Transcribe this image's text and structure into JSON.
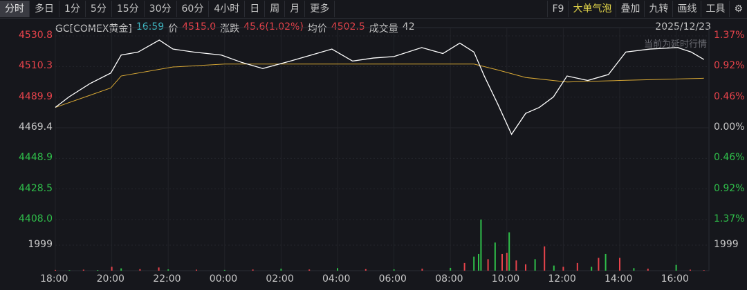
{
  "toolbar": {
    "tabs": [
      "分时",
      "多日",
      "1分",
      "5分",
      "15分",
      "30分",
      "60分",
      "4小时",
      "日",
      "周",
      "月",
      "更多"
    ],
    "active_tab": "分时",
    "tools": [
      "F9",
      "大单气泡",
      "叠加",
      "九转",
      "画线",
      "工具"
    ],
    "settings_icon": "gear-icon"
  },
  "info": {
    "symbol": "GC[COMEX黄金]",
    "time": "16:59",
    "price_label": "价",
    "price": "4515.0",
    "change_label": "涨跌",
    "change": "45.6(1.02%)",
    "avg_label": "均价",
    "avg": "4502.5",
    "volume_label": "成交量",
    "volume": "42",
    "date": "2025/12/23",
    "delay_notice": "当前为延时行情"
  },
  "colors": {
    "up": "#e8434b",
    "down": "#2fbf4a",
    "price_line": "#ffffff",
    "avg_line": "#d9a935",
    "time_text": "#3fb8c4"
  },
  "chart_data": {
    "type": "line",
    "prev_close": 4469.4,
    "ylim": [
      4408.0,
      4530.8
    ],
    "left_ticks": [
      "4530.8",
      "4510.3",
      "4489.9",
      "4469.4",
      "4448.9",
      "4428.5",
      "4408.0"
    ],
    "right_ticks": [
      "1.37%",
      "0.92%",
      "0.46%",
      "0.00%",
      "0.46%",
      "0.92%",
      "1.37%"
    ],
    "x_ticks": [
      "18:00",
      "20:00",
      "22:00",
      "00:00",
      "02:00",
      "04:00",
      "06:00",
      "08:00",
      "10:00",
      "12:00",
      "14:00",
      "16:00"
    ],
    "price": [
      [
        "18:00",
        4483
      ],
      [
        "18:29",
        4490
      ],
      [
        "19:14",
        4499
      ],
      [
        "19:58",
        4506
      ],
      [
        "20:20",
        4518
      ],
      [
        "20:56",
        4520
      ],
      [
        "21:41",
        4528
      ],
      [
        "22:10",
        4522
      ],
      [
        "22:54",
        4520
      ],
      [
        "23:53",
        4518
      ],
      [
        "00:37",
        4513
      ],
      [
        "01:21",
        4509
      ],
      [
        "02:20",
        4514
      ],
      [
        "03:04",
        4518
      ],
      [
        "03:48",
        4522
      ],
      [
        "04:32",
        4514
      ],
      [
        "05:16",
        4516
      ],
      [
        "06:00",
        4517
      ],
      [
        "06:59",
        4523
      ],
      [
        "07:44",
        4519
      ],
      [
        "08:20",
        4526
      ],
      [
        "08:50",
        4520
      ],
      [
        "09:12",
        4504
      ],
      [
        "09:41",
        4485
      ],
      [
        "10:10",
        4465
      ],
      [
        "10:40",
        4479
      ],
      [
        "11:09",
        4483
      ],
      [
        "11:39",
        4490
      ],
      [
        "12:08",
        4504
      ],
      [
        "12:52",
        4501
      ],
      [
        "13:36",
        4505
      ],
      [
        "14:13",
        4520
      ],
      [
        "15:04",
        4522
      ],
      [
        "16:03",
        4523
      ],
      [
        "16:32",
        4520
      ],
      [
        "16:59",
        4515
      ]
    ],
    "avg": [
      [
        "18:00",
        4483
      ],
      [
        "19:58",
        4496
      ],
      [
        "20:20",
        4504
      ],
      [
        "22:10",
        4510
      ],
      [
        "00:00",
        4512
      ],
      [
        "04:00",
        4512
      ],
      [
        "08:50",
        4512
      ],
      [
        "09:41",
        4508
      ],
      [
        "10:40",
        4503
      ],
      [
        "12:08",
        4500
      ],
      [
        "14:00",
        4501
      ],
      [
        "16:59",
        4502.5
      ]
    ],
    "volume_tick": "1999",
    "volume": [
      [
        "18:00",
        60,
        "u"
      ],
      [
        "18:30",
        40,
        "d"
      ],
      [
        "19:00",
        80,
        "u"
      ],
      [
        "19:30",
        50,
        "d"
      ],
      [
        "20:00",
        300,
        "u"
      ],
      [
        "20:20",
        180,
        "d"
      ],
      [
        "21:00",
        120,
        "u"
      ],
      [
        "21:40",
        250,
        "u"
      ],
      [
        "22:00",
        100,
        "d"
      ],
      [
        "23:00",
        80,
        "u"
      ],
      [
        "00:00",
        60,
        "d"
      ],
      [
        "01:00",
        90,
        "u"
      ],
      [
        "02:00",
        150,
        "d"
      ],
      [
        "03:00",
        90,
        "u"
      ],
      [
        "04:00",
        200,
        "d"
      ],
      [
        "05:00",
        120,
        "u"
      ],
      [
        "06:00",
        100,
        "d"
      ],
      [
        "07:00",
        150,
        "u"
      ],
      [
        "08:00",
        220,
        "d"
      ],
      [
        "08:30",
        600,
        "u"
      ],
      [
        "08:50",
        1100,
        "d"
      ],
      [
        "09:00",
        1300,
        "d"
      ],
      [
        "09:05",
        4000,
        "d"
      ],
      [
        "09:20",
        900,
        "u"
      ],
      [
        "09:35",
        2200,
        "d"
      ],
      [
        "09:50",
        1300,
        "u"
      ],
      [
        "10:00",
        1400,
        "u"
      ],
      [
        "10:05",
        3000,
        "d"
      ],
      [
        "10:20",
        800,
        "u"
      ],
      [
        "10:40",
        500,
        "u"
      ],
      [
        "11:00",
        900,
        "d"
      ],
      [
        "11:20",
        1900,
        "u"
      ],
      [
        "11:40",
        400,
        "d"
      ],
      [
        "12:00",
        300,
        "u"
      ],
      [
        "12:30",
        600,
        "u"
      ],
      [
        "13:00",
        300,
        "d"
      ],
      [
        "13:15",
        1000,
        "u"
      ],
      [
        "13:30",
        1300,
        "d"
      ],
      [
        "14:00",
        1000,
        "u"
      ],
      [
        "14:30",
        200,
        "d"
      ],
      [
        "15:00",
        150,
        "u"
      ],
      [
        "16:00",
        450,
        "d"
      ],
      [
        "16:30",
        80,
        "u"
      ],
      [
        "16:59",
        42,
        "u"
      ]
    ]
  }
}
